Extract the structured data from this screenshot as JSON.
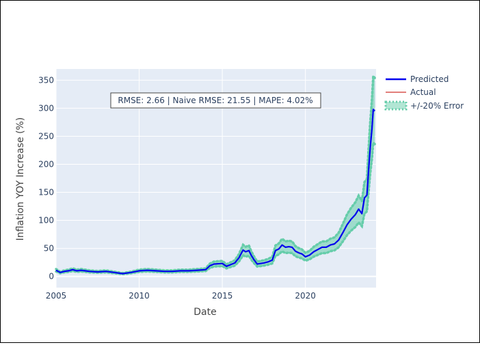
{
  "chart_data": {
    "type": "line",
    "xlabel": "Date",
    "ylabel": "Inflation YOY Increase (%)",
    "x_ticks": [
      "2005",
      "2010",
      "2015",
      "2020"
    ],
    "y_ticks": [
      "0",
      "50",
      "100",
      "150",
      "200",
      "250",
      "300",
      "350"
    ],
    "xlim": [
      2005.0,
      2024.25
    ],
    "ylim": [
      -20,
      370
    ],
    "grid": true,
    "legend_position": "top-right",
    "annotation": "RMSE: 2.66 | Naive RMSE: 21.55 | MAPE: 4.02%",
    "colors": {
      "predicted": "#0000ee",
      "actual": "#d9534f",
      "band": "#66cdaa",
      "plot_bg": "#e5ecf6"
    },
    "series": [
      {
        "name": "Predicted",
        "style": "solid line"
      },
      {
        "name": "Actual",
        "style": "thin line"
      },
      {
        "name": "+/-20% Error",
        "style": "dotted band"
      }
    ],
    "x": [
      2005.0,
      2005.25,
      2005.5,
      2005.75,
      2006.0,
      2006.25,
      2006.5,
      2006.75,
      2007.0,
      2007.5,
      2008.0,
      2008.5,
      2009.0,
      2009.25,
      2009.5,
      2010.0,
      2010.5,
      2011.0,
      2011.5,
      2012.0,
      2012.5,
      2013.0,
      2013.5,
      2014.0,
      2014.25,
      2014.5,
      2015.0,
      2015.25,
      2015.5,
      2015.75,
      2016.0,
      2016.25,
      2016.4,
      2016.6,
      2016.75,
      2016.9,
      2017.1,
      2017.3,
      2017.5,
      2017.75,
      2018.0,
      2018.2,
      2018.4,
      2018.6,
      2018.8,
      2019.0,
      2019.2,
      2019.4,
      2019.6,
      2019.8,
      2020.0,
      2020.25,
      2020.5,
      2020.75,
      2021.0,
      2021.25,
      2021.5,
      2021.75,
      2022.0,
      2022.25,
      2022.5,
      2022.75,
      2023.0,
      2023.2,
      2023.4,
      2023.55,
      2023.7,
      2023.8,
      2023.9,
      2024.0,
      2024.08,
      2024.17
    ],
    "predicted": [
      11,
      7,
      9,
      10,
      12,
      10,
      11,
      10,
      9,
      8,
      9,
      7,
      5,
      6,
      7,
      10,
      11,
      10,
      9,
      9,
      10,
      10,
      11,
      12,
      19,
      22,
      23,
      18,
      21,
      24,
      33,
      47,
      44,
      46,
      37,
      30,
      22,
      23,
      24,
      26,
      29,
      46,
      49,
      56,
      52,
      53,
      52,
      45,
      42,
      40,
      35,
      38,
      44,
      48,
      52,
      52,
      56,
      58,
      65,
      78,
      92,
      102,
      110,
      120,
      112,
      140,
      145,
      190,
      230,
      262,
      298,
      295
    ]
  }
}
